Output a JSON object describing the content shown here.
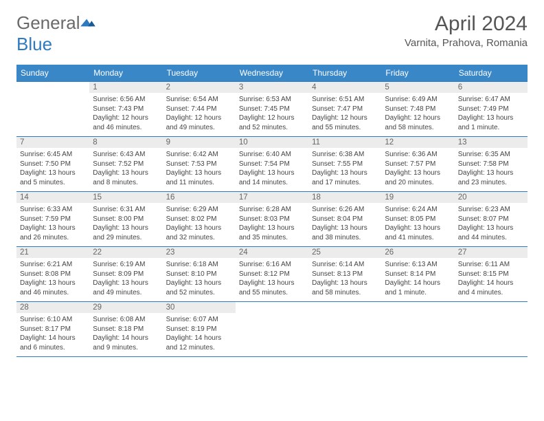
{
  "logo": {
    "text_a": "General",
    "text_b": "Blue"
  },
  "title": "April 2024",
  "location": "Varnita, Prahova, Romania",
  "colors": {
    "header_bg": "#3a87c8",
    "header_text": "#ffffff",
    "daynum_bg": "#ececec",
    "daynum_text": "#666666",
    "body_text": "#444444",
    "rule": "#2e7ac0",
    "logo_gray": "#6a6a6a",
    "logo_blue": "#2e7ac0"
  },
  "weekdays": [
    "Sunday",
    "Monday",
    "Tuesday",
    "Wednesday",
    "Thursday",
    "Friday",
    "Saturday"
  ],
  "weeks": [
    [
      null,
      {
        "n": "1",
        "sr": "6:56 AM",
        "ss": "7:43 PM",
        "dl": "12 hours and 46 minutes."
      },
      {
        "n": "2",
        "sr": "6:54 AM",
        "ss": "7:44 PM",
        "dl": "12 hours and 49 minutes."
      },
      {
        "n": "3",
        "sr": "6:53 AM",
        "ss": "7:45 PM",
        "dl": "12 hours and 52 minutes."
      },
      {
        "n": "4",
        "sr": "6:51 AM",
        "ss": "7:47 PM",
        "dl": "12 hours and 55 minutes."
      },
      {
        "n": "5",
        "sr": "6:49 AM",
        "ss": "7:48 PM",
        "dl": "12 hours and 58 minutes."
      },
      {
        "n": "6",
        "sr": "6:47 AM",
        "ss": "7:49 PM",
        "dl": "13 hours and 1 minute."
      }
    ],
    [
      {
        "n": "7",
        "sr": "6:45 AM",
        "ss": "7:50 PM",
        "dl": "13 hours and 5 minutes."
      },
      {
        "n": "8",
        "sr": "6:43 AM",
        "ss": "7:52 PM",
        "dl": "13 hours and 8 minutes."
      },
      {
        "n": "9",
        "sr": "6:42 AM",
        "ss": "7:53 PM",
        "dl": "13 hours and 11 minutes."
      },
      {
        "n": "10",
        "sr": "6:40 AM",
        "ss": "7:54 PM",
        "dl": "13 hours and 14 minutes."
      },
      {
        "n": "11",
        "sr": "6:38 AM",
        "ss": "7:55 PM",
        "dl": "13 hours and 17 minutes."
      },
      {
        "n": "12",
        "sr": "6:36 AM",
        "ss": "7:57 PM",
        "dl": "13 hours and 20 minutes."
      },
      {
        "n": "13",
        "sr": "6:35 AM",
        "ss": "7:58 PM",
        "dl": "13 hours and 23 minutes."
      }
    ],
    [
      {
        "n": "14",
        "sr": "6:33 AM",
        "ss": "7:59 PM",
        "dl": "13 hours and 26 minutes."
      },
      {
        "n": "15",
        "sr": "6:31 AM",
        "ss": "8:00 PM",
        "dl": "13 hours and 29 minutes."
      },
      {
        "n": "16",
        "sr": "6:29 AM",
        "ss": "8:02 PM",
        "dl": "13 hours and 32 minutes."
      },
      {
        "n": "17",
        "sr": "6:28 AM",
        "ss": "8:03 PM",
        "dl": "13 hours and 35 minutes."
      },
      {
        "n": "18",
        "sr": "6:26 AM",
        "ss": "8:04 PM",
        "dl": "13 hours and 38 minutes."
      },
      {
        "n": "19",
        "sr": "6:24 AM",
        "ss": "8:05 PM",
        "dl": "13 hours and 41 minutes."
      },
      {
        "n": "20",
        "sr": "6:23 AM",
        "ss": "8:07 PM",
        "dl": "13 hours and 44 minutes."
      }
    ],
    [
      {
        "n": "21",
        "sr": "6:21 AM",
        "ss": "8:08 PM",
        "dl": "13 hours and 46 minutes."
      },
      {
        "n": "22",
        "sr": "6:19 AM",
        "ss": "8:09 PM",
        "dl": "13 hours and 49 minutes."
      },
      {
        "n": "23",
        "sr": "6:18 AM",
        "ss": "8:10 PM",
        "dl": "13 hours and 52 minutes."
      },
      {
        "n": "24",
        "sr": "6:16 AM",
        "ss": "8:12 PM",
        "dl": "13 hours and 55 minutes."
      },
      {
        "n": "25",
        "sr": "6:14 AM",
        "ss": "8:13 PM",
        "dl": "13 hours and 58 minutes."
      },
      {
        "n": "26",
        "sr": "6:13 AM",
        "ss": "8:14 PM",
        "dl": "14 hours and 1 minute."
      },
      {
        "n": "27",
        "sr": "6:11 AM",
        "ss": "8:15 PM",
        "dl": "14 hours and 4 minutes."
      }
    ],
    [
      {
        "n": "28",
        "sr": "6:10 AM",
        "ss": "8:17 PM",
        "dl": "14 hours and 6 minutes."
      },
      {
        "n": "29",
        "sr": "6:08 AM",
        "ss": "8:18 PM",
        "dl": "14 hours and 9 minutes."
      },
      {
        "n": "30",
        "sr": "6:07 AM",
        "ss": "8:19 PM",
        "dl": "14 hours and 12 minutes."
      },
      null,
      null,
      null,
      null
    ]
  ],
  "labels": {
    "sunrise": "Sunrise:",
    "sunset": "Sunset:",
    "daylight": "Daylight:"
  }
}
